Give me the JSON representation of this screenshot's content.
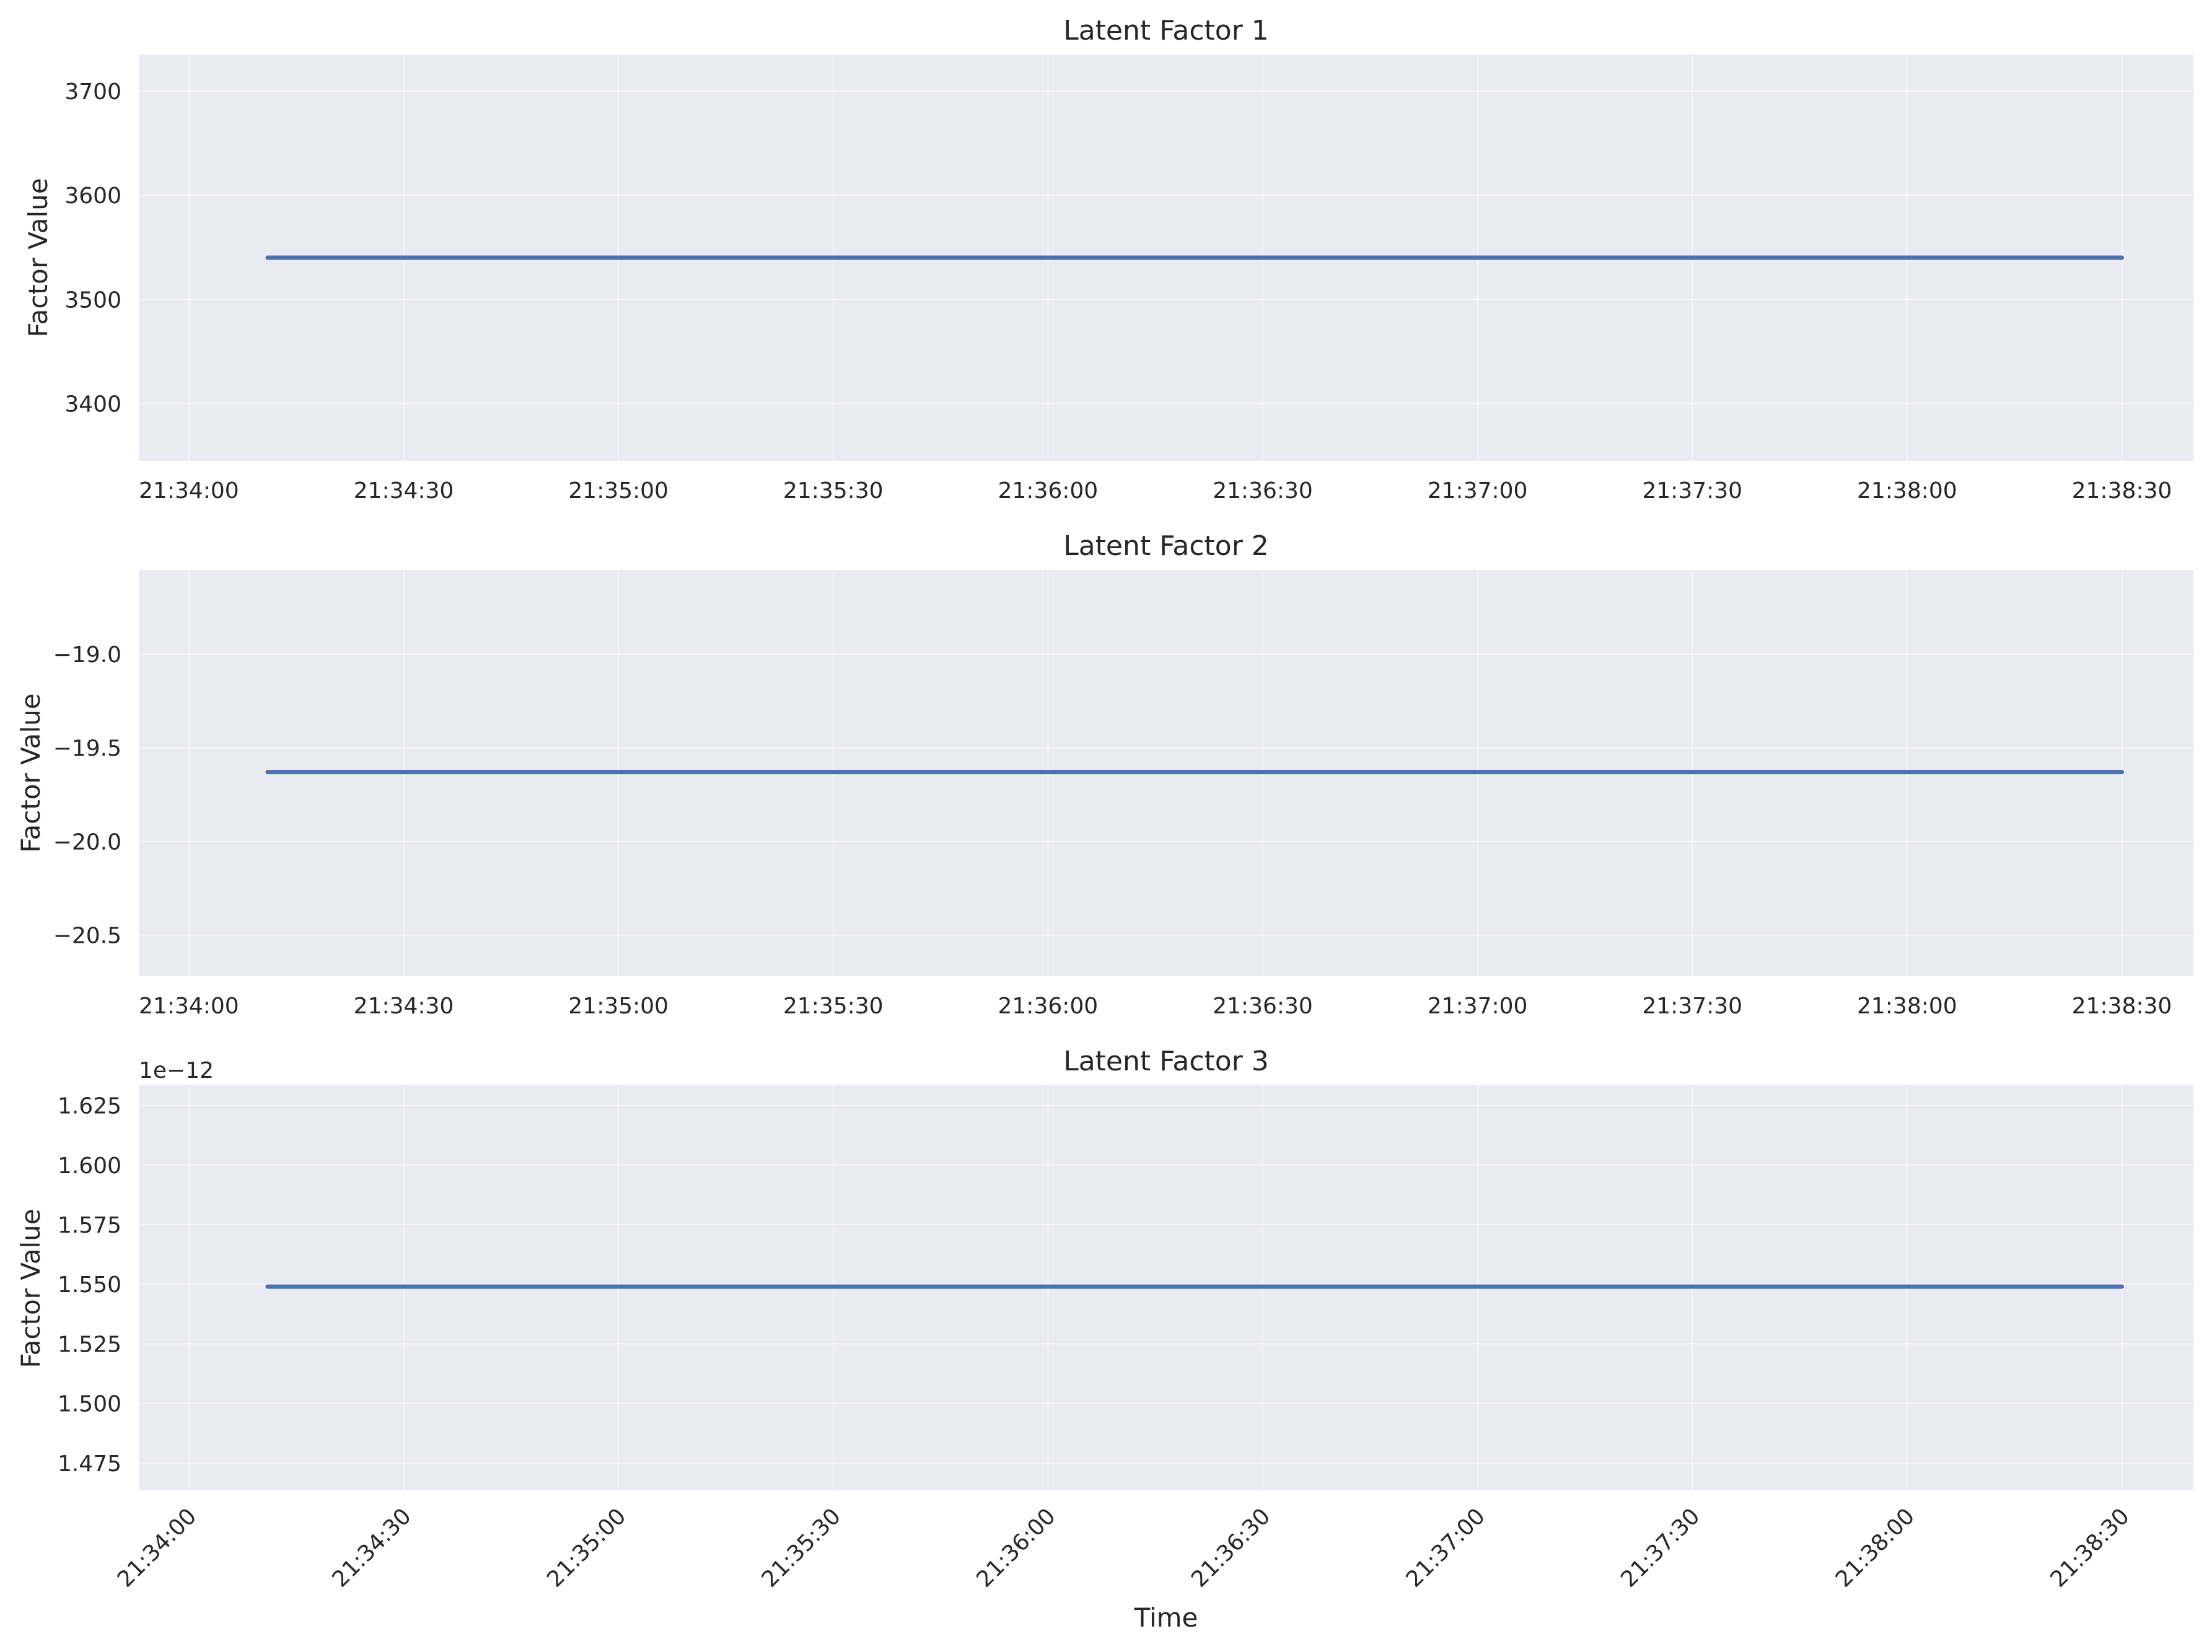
{
  "chart_data": [
    {
      "type": "line",
      "title": "Latent Factor 1",
      "ylabel": "Factor Value",
      "xlabel": "",
      "x_tick_labels": [
        "21:34:00",
        "21:34:30",
        "21:35:00",
        "21:35:30",
        "21:36:00",
        "21:36:30",
        "21:37:00",
        "21:37:30",
        "21:38:00",
        "21:38:30"
      ],
      "x_ticks": [
        "21:34:00",
        "21:34:30",
        "21:35:00",
        "21:35:30",
        "21:36:00",
        "21:36:30",
        "21:37:00",
        "21:37:30",
        "21:38:00",
        "21:38:30"
      ],
      "xlim": [
        "21:33:53",
        "21:38:40"
      ],
      "y_tick_labels": [
        "3400",
        "3500",
        "3600",
        "3700"
      ],
      "y_ticks": [
        3400,
        3500,
        3600,
        3700
      ],
      "ylim": [
        3345,
        3735
      ],
      "offset_label": "",
      "x_tick_rotation": 0,
      "grid": true,
      "series": [
        {
          "x": [
            "21:34:11",
            "21:38:30"
          ],
          "y": [
            3540,
            3540
          ]
        }
      ]
    },
    {
      "type": "line",
      "title": "Latent Factor 2",
      "ylabel": "Factor Value",
      "xlabel": "",
      "x_tick_labels": [
        "21:34:00",
        "21:34:30",
        "21:35:00",
        "21:35:30",
        "21:36:00",
        "21:36:30",
        "21:37:00",
        "21:37:30",
        "21:38:00",
        "21:38:30"
      ],
      "x_ticks": [
        "21:34:00",
        "21:34:30",
        "21:35:00",
        "21:35:30",
        "21:36:00",
        "21:36:30",
        "21:37:00",
        "21:37:30",
        "21:38:00",
        "21:38:30"
      ],
      "xlim": [
        "21:33:53",
        "21:38:40"
      ],
      "y_tick_labels": [
        "−20.5",
        "−20.0",
        "−19.5",
        "−19.0"
      ],
      "y_ticks": [
        -20.5,
        -20.0,
        -19.5,
        -19.0
      ],
      "ylim": [
        -20.72,
        -18.55
      ],
      "offset_label": "",
      "x_tick_rotation": 0,
      "grid": true,
      "series": [
        {
          "x": [
            "21:34:11",
            "21:38:30"
          ],
          "y": [
            -19.63,
            -19.63
          ]
        }
      ]
    },
    {
      "type": "line",
      "title": "Latent Factor 3",
      "ylabel": "Factor Value",
      "xlabel": "Time",
      "x_tick_labels": [
        "21:34:00",
        "21:34:30",
        "21:35:00",
        "21:35:30",
        "21:36:00",
        "21:36:30",
        "21:37:00",
        "21:37:30",
        "21:38:00",
        "21:38:30"
      ],
      "x_ticks": [
        "21:34:00",
        "21:34:30",
        "21:35:00",
        "21:35:30",
        "21:36:00",
        "21:36:30",
        "21:37:00",
        "21:37:30",
        "21:38:00",
        "21:38:30"
      ],
      "xlim": [
        "21:33:53",
        "21:38:40"
      ],
      "y_tick_labels": [
        "1.475",
        "1.500",
        "1.525",
        "1.550",
        "1.575",
        "1.600",
        "1.625"
      ],
      "y_ticks": [
        1.475,
        1.5,
        1.525,
        1.55,
        1.575,
        1.6,
        1.625
      ],
      "ylim": [
        1.4635,
        1.6335
      ],
      "offset_label": "1e−12",
      "x_tick_rotation": -45,
      "grid": true,
      "series": [
        {
          "x": [
            "21:34:11",
            "21:38:30"
          ],
          "y": [
            1.549,
            1.549
          ]
        }
      ]
    }
  ]
}
